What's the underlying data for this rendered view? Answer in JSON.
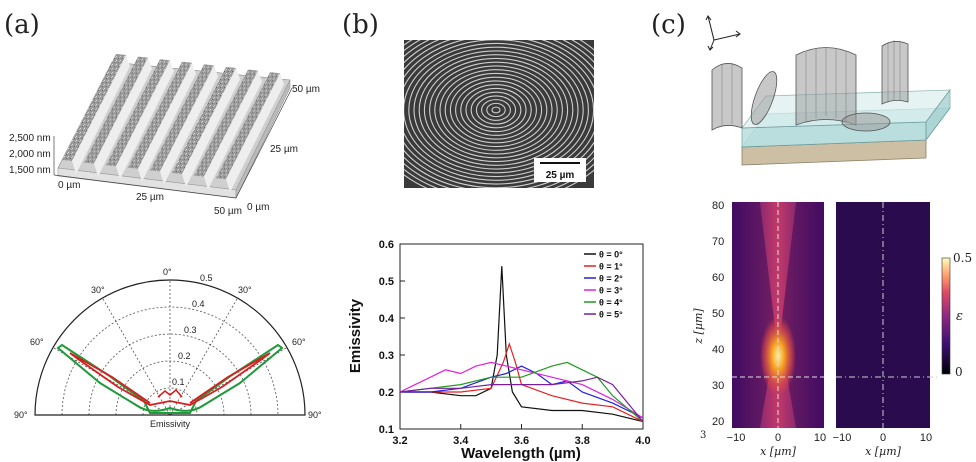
{
  "panels": {
    "a_label": "(a)",
    "b_label": "(b)",
    "c_label": "(c)"
  },
  "panel_a": {
    "surface": {
      "z_ticks": [
        "2,500 nm",
        "2,000 nm",
        "1,500 nm"
      ],
      "x_ticks": [
        "0 µm",
        "25 µm",
        "50 µm"
      ],
      "y_ticks": [
        "0 µm",
        "25 µm",
        "50 µm"
      ]
    },
    "polar": {
      "angle_labels": [
        "0°",
        "30°",
        "30°",
        "60°",
        "60°",
        "90°",
        "90°"
      ],
      "radial_labels": [
        "0.5",
        "0.4",
        "0.3",
        "0.2",
        "0.1"
      ],
      "caption": "Emissivity"
    }
  },
  "panel_b": {
    "scale_bar": "25 µm",
    "chart_data": {
      "type": "line",
      "xlabel": "Wavelength (µm)",
      "ylabel": "Emissivity",
      "xlim": [
        3.2,
        4.0
      ],
      "ylim": [
        0.1,
        0.6
      ],
      "x_ticks": [
        "3.2",
        "3.4",
        "3.6",
        "3.8",
        "4.0"
      ],
      "y_ticks": [
        "0.1",
        "0.2",
        "0.3",
        "0.4",
        "0.5",
        "0.6"
      ],
      "legend_position": "top-right",
      "series": [
        {
          "name": "θ = 0°",
          "color": "#111111",
          "x": [
            3.2,
            3.3,
            3.4,
            3.45,
            3.5,
            3.52,
            3.535,
            3.55,
            3.57,
            3.6,
            3.7,
            3.8,
            3.9,
            4.0
          ],
          "y": [
            0.2,
            0.2,
            0.19,
            0.19,
            0.21,
            0.3,
            0.54,
            0.3,
            0.2,
            0.16,
            0.15,
            0.15,
            0.14,
            0.12
          ]
        },
        {
          "name": "θ = 1°",
          "color": "#e32222",
          "x": [
            3.2,
            3.3,
            3.4,
            3.5,
            3.54,
            3.56,
            3.58,
            3.6,
            3.7,
            3.8,
            3.9,
            4.0
          ],
          "y": [
            0.2,
            0.2,
            0.2,
            0.21,
            0.28,
            0.33,
            0.28,
            0.22,
            0.19,
            0.17,
            0.16,
            0.12
          ]
        },
        {
          "name": "θ = 2°",
          "color": "#2222e0",
          "x": [
            3.2,
            3.3,
            3.4,
            3.5,
            3.55,
            3.6,
            3.65,
            3.7,
            3.75,
            3.8,
            3.9,
            4.0
          ],
          "y": [
            0.2,
            0.2,
            0.21,
            0.24,
            0.25,
            0.27,
            0.25,
            0.22,
            0.23,
            0.2,
            0.17,
            0.13
          ]
        },
        {
          "name": "θ = 3°",
          "color": "#e020e0",
          "x": [
            3.2,
            3.25,
            3.3,
            3.35,
            3.4,
            3.45,
            3.5,
            3.55,
            3.6,
            3.7,
            3.8,
            3.9,
            4.0
          ],
          "y": [
            0.2,
            0.22,
            0.24,
            0.26,
            0.25,
            0.27,
            0.28,
            0.27,
            0.26,
            0.24,
            0.22,
            0.18,
            0.13
          ]
        },
        {
          "name": "θ = 4°",
          "color": "#1f9a1f",
          "x": [
            3.2,
            3.3,
            3.4,
            3.5,
            3.6,
            3.7,
            3.75,
            3.8,
            3.85,
            3.9,
            4.0
          ],
          "y": [
            0.2,
            0.21,
            0.22,
            0.24,
            0.24,
            0.27,
            0.28,
            0.26,
            0.24,
            0.19,
            0.12
          ]
        },
        {
          "name": "θ = 5°",
          "color": "#7a1f9c",
          "x": [
            3.2,
            3.3,
            3.4,
            3.5,
            3.6,
            3.7,
            3.8,
            3.85,
            3.9,
            3.95,
            4.0
          ],
          "y": [
            0.2,
            0.21,
            0.21,
            0.22,
            0.22,
            0.22,
            0.23,
            0.24,
            0.22,
            0.17,
            0.12
          ]
        }
      ]
    }
  },
  "panel_c": {
    "left_map": {
      "y_ticks": [
        "80",
        "70",
        "60",
        "50",
        "40",
        "30",
        "20"
      ],
      "x_ticks": [
        "−10",
        "0",
        "10"
      ],
      "xlabel": "x [µm]",
      "ylabel": "z [µm]"
    },
    "right_map": {
      "x_ticks": [
        "−10",
        "0",
        "10"
      ],
      "xlabel": "x [µm]"
    },
    "stray_tick": "3",
    "colorbar": {
      "max": "0.5",
      "min": "0",
      "label": "ε"
    }
  }
}
